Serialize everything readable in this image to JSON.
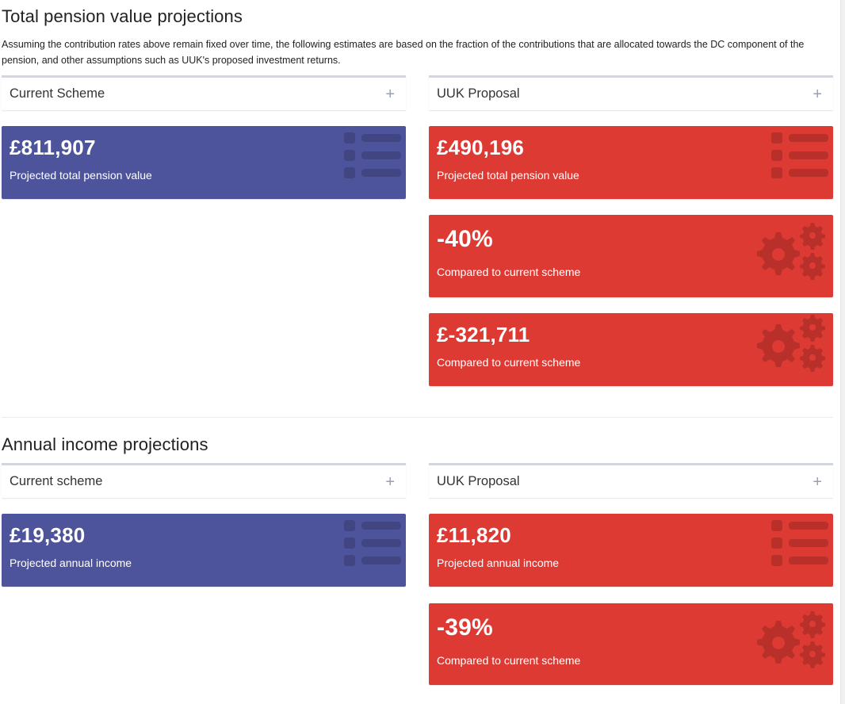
{
  "pension": {
    "heading": "Total pension value projections",
    "description": "Assuming the contribution rates above remain fixed over time, the following estimates are based on the fraction of the contributions that are allocated towards the DC component of the pension, and other assumptions such as UUK's proposed investment returns.",
    "current": {
      "header": "Current Scheme",
      "expand_glyph": "+",
      "total": {
        "value": "£811,907",
        "caption": "Projected total pension value",
        "icon": "list-icon"
      }
    },
    "uuk": {
      "header": "UUK Proposal",
      "expand_glyph": "+",
      "total": {
        "value": "£490,196",
        "caption": "Projected total pension value",
        "icon": "list-icon"
      },
      "percent": {
        "value": "-40%",
        "caption": "Compared to current scheme",
        "icon": "gears-icon"
      },
      "difference": {
        "value": "£-321,711",
        "caption": "Compared to current scheme",
        "icon": "gears-icon"
      }
    }
  },
  "income": {
    "heading": "Annual income projections",
    "current": {
      "header": "Current scheme",
      "expand_glyph": "+",
      "annual": {
        "value": "£19,380",
        "caption": "Projected annual income",
        "icon": "list-icon"
      }
    },
    "uuk": {
      "header": "UUK Proposal",
      "expand_glyph": "+",
      "annual": {
        "value": "£11,820",
        "caption": "Projected annual income",
        "icon": "list-icon"
      },
      "percent": {
        "value": "-39%",
        "caption": "Compared to current scheme",
        "icon": "gears-icon"
      }
    }
  },
  "colors": {
    "current_box": "#4e549b",
    "uuk_box": "#dd3a34",
    "box_border": "#d2d6de"
  }
}
